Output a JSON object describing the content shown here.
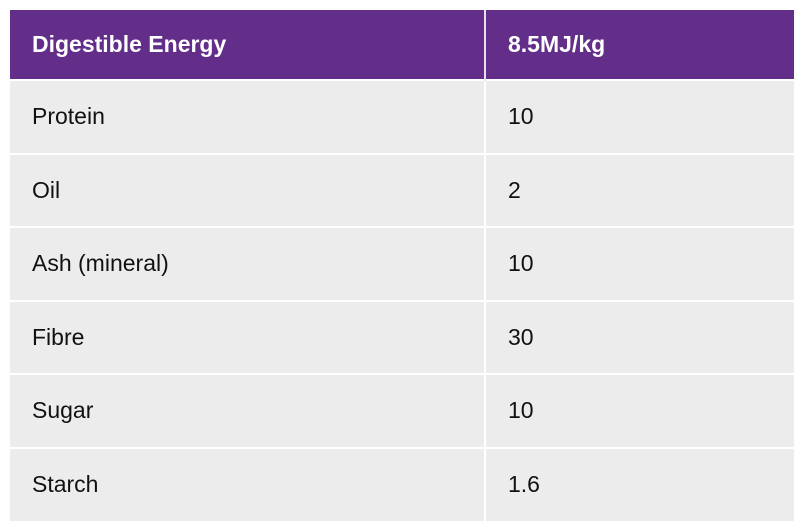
{
  "table": {
    "headers": [
      "Digestible Energy",
      "8.5MJ/kg"
    ],
    "rows": [
      [
        "Protein",
        "10"
      ],
      [
        "Oil",
        "2"
      ],
      [
        "Ash (mineral)",
        "10"
      ],
      [
        "Fibre",
        "30"
      ],
      [
        "Sugar",
        "10"
      ],
      [
        "Starch",
        "1.6"
      ]
    ]
  },
  "colors": {
    "header_bg": "#632e8a",
    "header_text": "#ffffff",
    "row_bg": "#ececec"
  }
}
